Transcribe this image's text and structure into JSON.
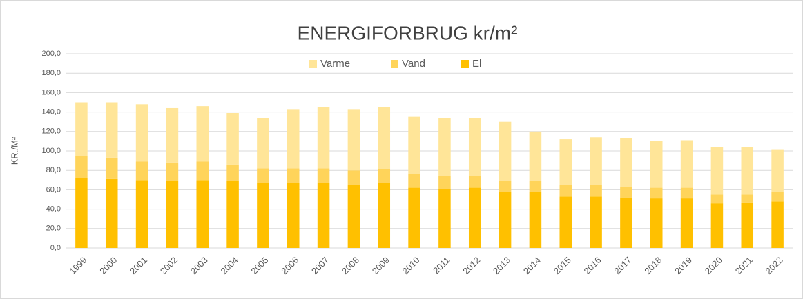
{
  "chart_data": {
    "type": "stacked_bar",
    "title": "ENERGIFORBRUG  kr/m²",
    "y_label": "KR./M²",
    "categories": [
      "1999",
      "2000",
      "2001",
      "2002",
      "2003",
      "2004",
      "2005",
      "2006",
      "2007",
      "2008",
      "2009",
      "2010",
      "2011",
      "2012",
      "2013",
      "2014",
      "2015",
      "2016",
      "2017",
      "2018",
      "2019",
      "2020",
      "2021",
      "2022"
    ],
    "series": [
      {
        "name": "El",
        "color": "#ffc000",
        "values": [
          72,
          71,
          70,
          69,
          70,
          69,
          67,
          67,
          67,
          65,
          67,
          62,
          61,
          62,
          58,
          58,
          53,
          53,
          52,
          51,
          51,
          46,
          47,
          48
        ]
      },
      {
        "name": "Vand",
        "color": "#ffd45a",
        "values": [
          23,
          22,
          19,
          19,
          19,
          17,
          15,
          15,
          15,
          15,
          14,
          14,
          13,
          12,
          11,
          11,
          12,
          12,
          11,
          11,
          11,
          9,
          8,
          10
        ]
      },
      {
        "name": "Varme",
        "color": "#ffe598",
        "values": [
          55,
          57,
          59,
          56,
          57,
          53,
          52,
          61,
          63,
          63,
          64,
          59,
          60,
          60,
          61,
          51,
          47,
          49,
          50,
          48,
          49,
          49,
          49,
          43
        ]
      }
    ],
    "ylim": [
      0,
      200
    ],
    "yticks": [
      {
        "value": 0,
        "label": "0,0"
      },
      {
        "value": 20,
        "label": "20,0"
      },
      {
        "value": 40,
        "label": "40,0"
      },
      {
        "value": 60,
        "label": "60,0"
      },
      {
        "value": 80,
        "label": "80,0"
      },
      {
        "value": 100,
        "label": "100,0"
      },
      {
        "value": 120,
        "label": "120,0"
      },
      {
        "value": 140,
        "label": "140,0"
      },
      {
        "value": 160,
        "label": "160,0"
      },
      {
        "value": 180,
        "label": "180,0"
      },
      {
        "value": 200,
        "label": "200,0"
      }
    ],
    "grid": true
  }
}
